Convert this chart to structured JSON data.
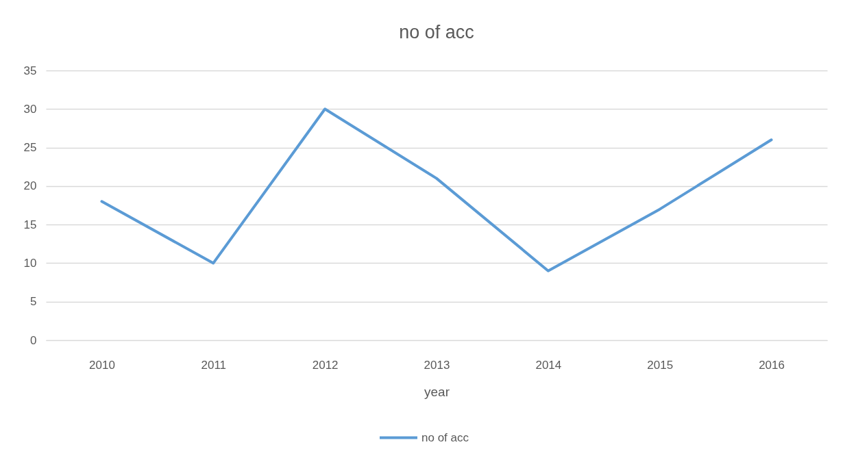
{
  "chart_data": {
    "type": "line",
    "title": "no of acc",
    "xlabel": "year",
    "categories": [
      "2010",
      "2011",
      "2012",
      "2013",
      "2014",
      "2015",
      "2016"
    ],
    "series": [
      {
        "name": "no of acc",
        "color": "#5b9bd5",
        "values": [
          18,
          10,
          30,
          21,
          9,
          17,
          26
        ]
      }
    ],
    "ylim": [
      0,
      35
    ],
    "yticks": [
      0,
      5,
      10,
      15,
      20,
      25,
      30,
      35
    ],
    "grid": "y",
    "legend": "bottom",
    "marker": "none",
    "line_style": "solid"
  }
}
